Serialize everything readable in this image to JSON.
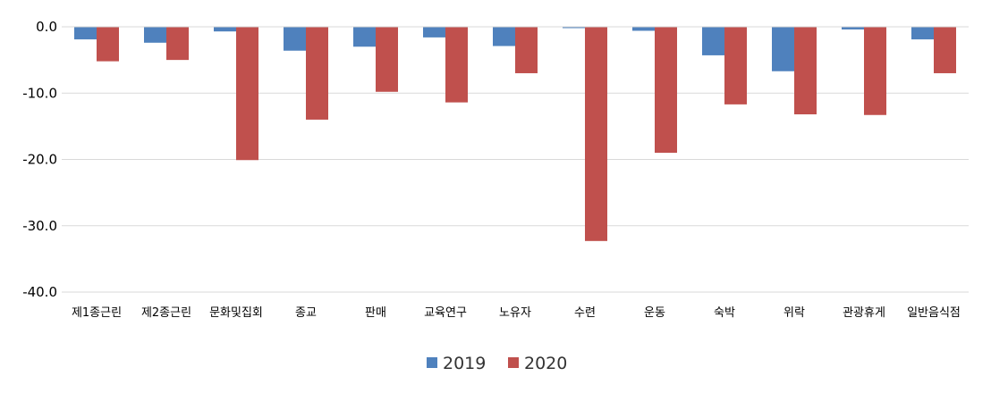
{
  "chart_data": {
    "type": "bar",
    "title": "",
    "xlabel": "",
    "ylabel": "",
    "ylim": [
      -40,
      0
    ],
    "yticks": [
      "0.0",
      "-10.0",
      "-20.0",
      "-30.0",
      "-40.0"
    ],
    "ytick_values": [
      0,
      -10,
      -20,
      -30,
      -40
    ],
    "grid": true,
    "legend_position": "bottom",
    "categories": [
      "제1종근린",
      "제2종근린",
      "문화및집회",
      "종교",
      "판매",
      "교육연구",
      "노유자",
      "수련",
      "운동",
      "숙박",
      "위락",
      "관광휴게",
      "일반음식점"
    ],
    "series": [
      {
        "name": "2019",
        "color": "#4F81BD",
        "values": [
          -1.9,
          -2.4,
          -0.7,
          -3.6,
          -3.0,
          -1.6,
          -2.9,
          -0.2,
          -0.6,
          -4.3,
          -6.7,
          -0.4,
          -1.9
        ]
      },
      {
        "name": "2020",
        "color": "#C0504D",
        "values": [
          -5.2,
          -5.0,
          -20.1,
          -14.0,
          -9.8,
          -11.4,
          -7.0,
          -32.3,
          -19.0,
          -11.7,
          -13.2,
          -13.3,
          -7.0
        ]
      }
    ]
  }
}
